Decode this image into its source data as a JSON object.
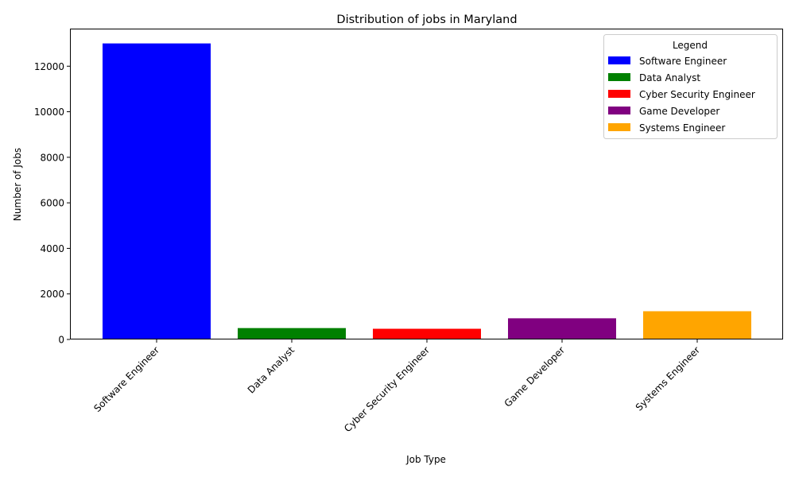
{
  "chart_data": {
    "type": "bar",
    "title": "Distribution of jobs in Maryland",
    "xlabel": "Job Type",
    "ylabel": "Number of Jobs",
    "categories": [
      "Software Engineer",
      "Data Analyst",
      "Cyber Security Engineer",
      "Game Developer",
      "Systems Engineer"
    ],
    "values": [
      13000,
      500,
      470,
      930,
      1240
    ],
    "colors": [
      "#0000ff",
      "#008000",
      "#ff0000",
      "#800080",
      "#ffa500"
    ],
    "ylim": [
      0,
      13650
    ],
    "yticks": [
      0,
      2000,
      4000,
      6000,
      8000,
      10000,
      12000
    ],
    "grid": false,
    "legend": {
      "title": "Legend",
      "position": "top-right",
      "entries": [
        "Software Engineer",
        "Data Analyst",
        "Cyber Security Engineer",
        "Game Developer",
        "Systems Engineer"
      ]
    }
  }
}
